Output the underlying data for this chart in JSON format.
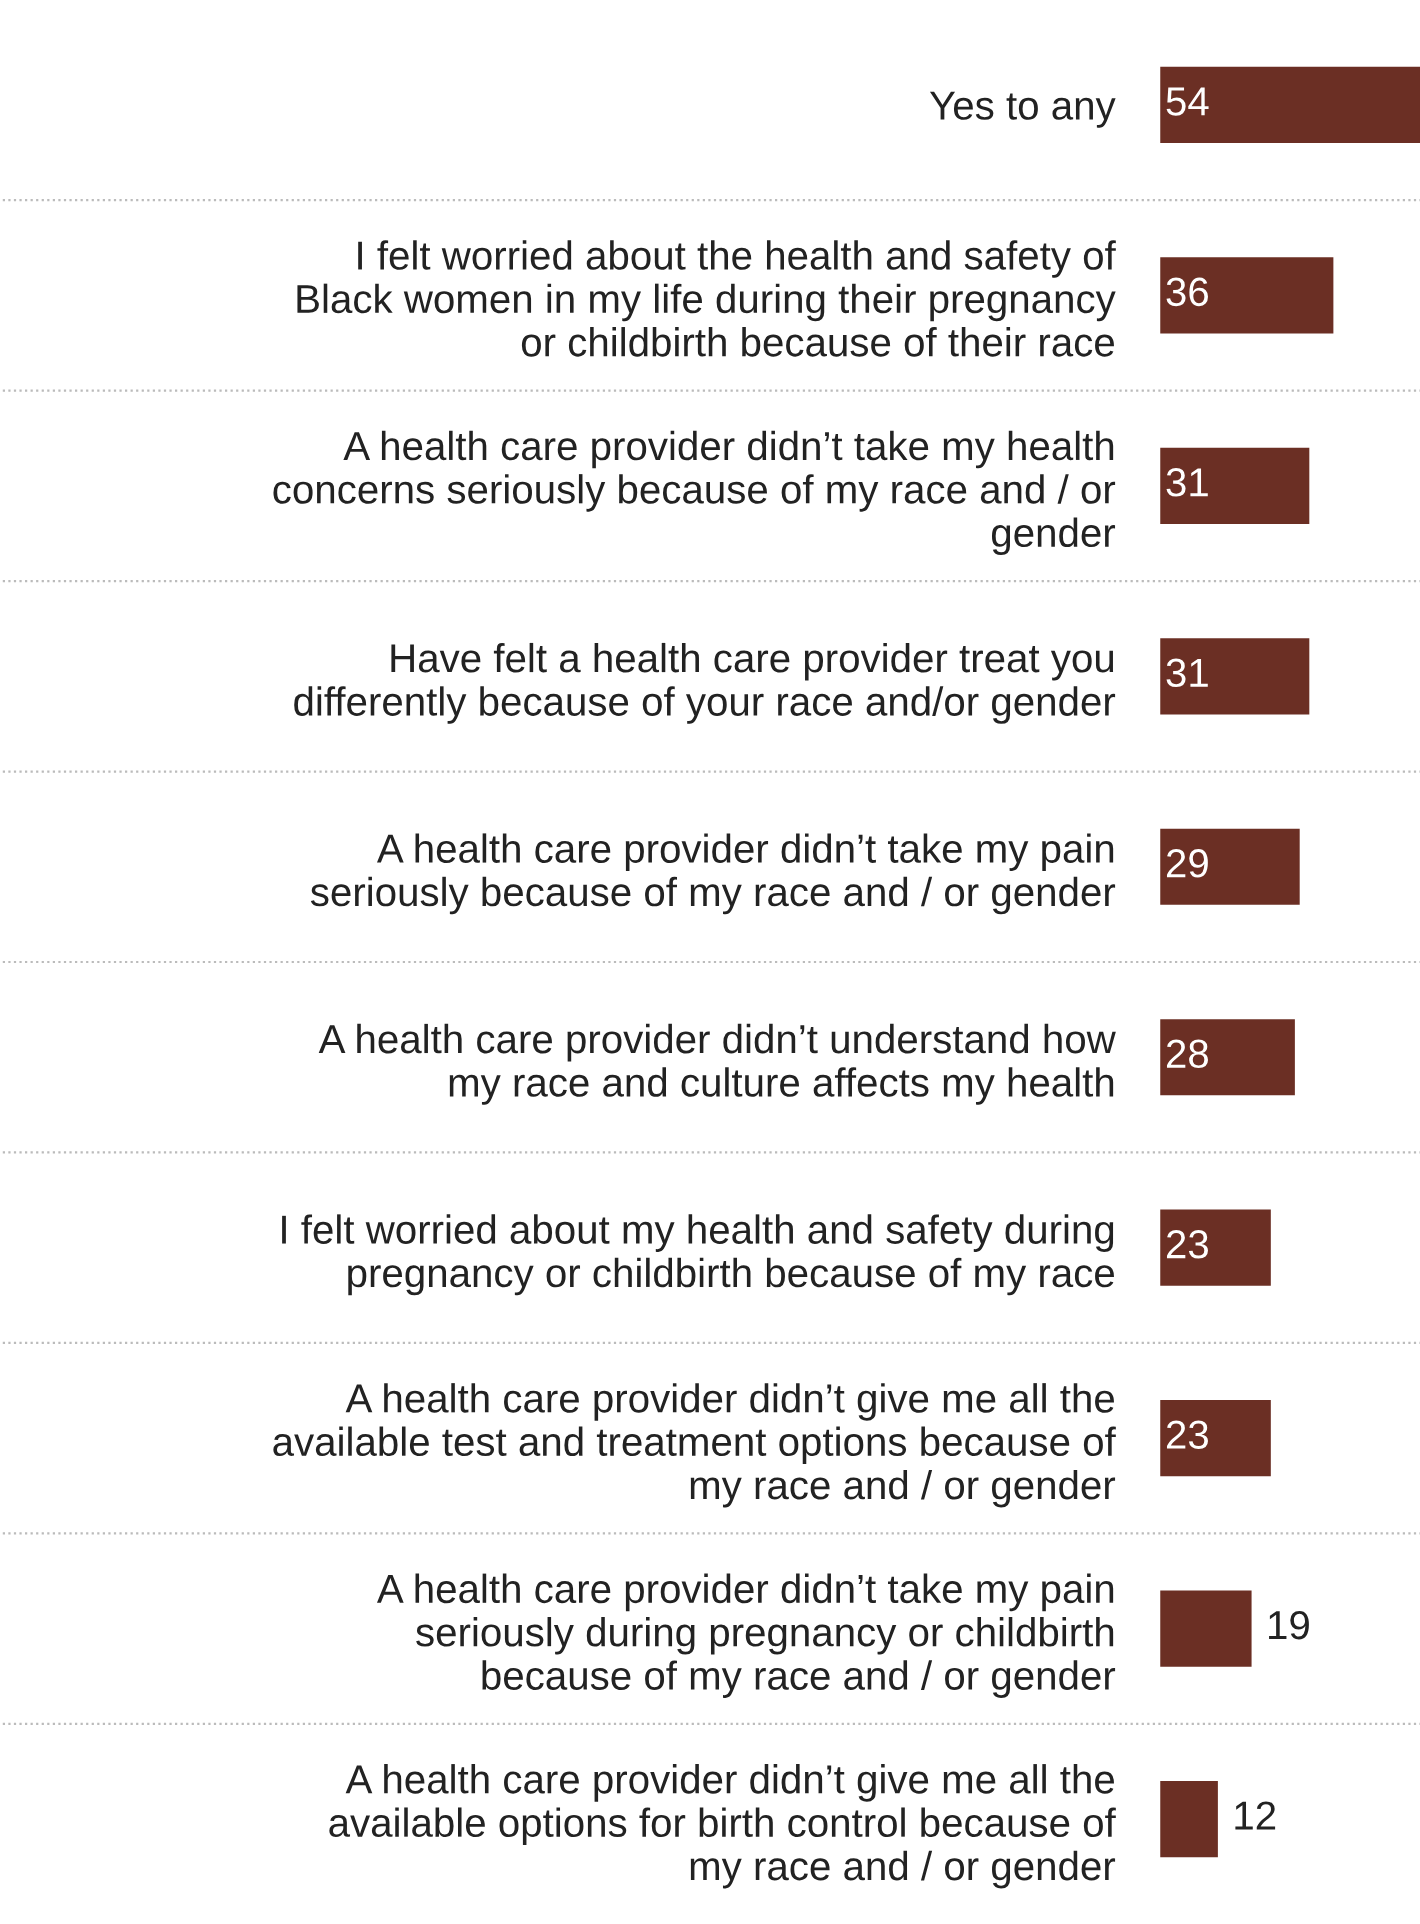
{
  "chart_data": {
    "type": "bar",
    "orientation": "horizontal",
    "categories": [
      "Yes to any",
      "I felt worried about the health and safety of\nBlack women in my life during their pregnancy\nor childbirth because of their race",
      "A health care provider didn’t take my health\nconcerns seriously because of my race and / or\ngender",
      "Have felt a health care provider treat you\ndifferently because of your race and/or gender",
      "A health care provider didn’t take my pain\nseriously because of my race and / or gender",
      "A health care provider didn’t understand how\nmy race and culture affects my health",
      "I felt worried about my health and safety during\npregnancy or childbirth because of my race",
      "A health care provider didn’t give me all the\navailable test and treatment options because of\nmy race and / or gender",
      "A health care provider didn’t take my pain\nseriously during pregnancy or childbirth\nbecause of my race and / or gender",
      "A health care provider didn’t give me all the\navailable options for birth control because of\nmy race and / or gender"
    ],
    "values": [
      54,
      36,
      31,
      31,
      29,
      28,
      23,
      23,
      19,
      12
    ],
    "color": "#6b2f24",
    "data_labels": true,
    "grid": "y"
  }
}
